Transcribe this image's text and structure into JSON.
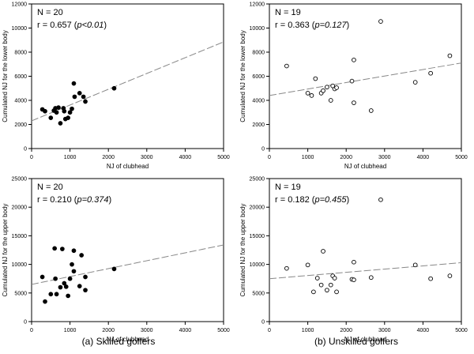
{
  "chart_data": [
    {
      "type": "scatter",
      "marker": "filled",
      "n_label": "N = 20",
      "r_text": "r = 0.657 (",
      "r_p": "p<0.01",
      "r_close": ")",
      "xlabel": "NJ of clubhead",
      "ylabel": "Cumulated NJ for the lower body",
      "xlim": [
        0,
        5000
      ],
      "ylim": [
        0,
        12000
      ],
      "xticks": [
        0,
        1000,
        2000,
        3000,
        4000,
        5000
      ],
      "yticks": [
        0,
        2000,
        4000,
        6000,
        8000,
        10000,
        12000
      ],
      "trend": {
        "x0": 0,
        "y0": 2300,
        "x1": 5000,
        "y1": 8850
      },
      "points": [
        {
          "x": 280,
          "y": 3250
        },
        {
          "x": 350,
          "y": 3100
        },
        {
          "x": 500,
          "y": 2550
        },
        {
          "x": 580,
          "y": 3150
        },
        {
          "x": 620,
          "y": 3350
        },
        {
          "x": 650,
          "y": 3000
        },
        {
          "x": 700,
          "y": 3400
        },
        {
          "x": 750,
          "y": 2100
        },
        {
          "x": 830,
          "y": 3350
        },
        {
          "x": 850,
          "y": 3100
        },
        {
          "x": 880,
          "y": 2450
        },
        {
          "x": 950,
          "y": 2550
        },
        {
          "x": 1000,
          "y": 3000
        },
        {
          "x": 1050,
          "y": 3300
        },
        {
          "x": 1100,
          "y": 5400
        },
        {
          "x": 1120,
          "y": 4300
        },
        {
          "x": 1250,
          "y": 4600
        },
        {
          "x": 1350,
          "y": 4300
        },
        {
          "x": 1400,
          "y": 3900
        },
        {
          "x": 2150,
          "y": 5000
        }
      ]
    },
    {
      "type": "scatter",
      "marker": "open",
      "n_label": "N = 19",
      "r_text": "r = 0.363 (",
      "r_p": "p=0.127",
      "r_close": ")",
      "xlabel": "NJ of clubhead",
      "ylabel": "Cumulated NJ for the lower body",
      "xlim": [
        0,
        5000
      ],
      "ylim": [
        0,
        12000
      ],
      "xticks": [
        0,
        1000,
        2000,
        3000,
        4000,
        5000
      ],
      "yticks": [
        0,
        2000,
        4000,
        6000,
        8000,
        10000,
        12000
      ],
      "trend": {
        "x0": 0,
        "y0": 4400,
        "x1": 5000,
        "y1": 7100
      },
      "points": [
        {
          "x": 450,
          "y": 6850
        },
        {
          "x": 1000,
          "y": 4600
        },
        {
          "x": 1100,
          "y": 4400
        },
        {
          "x": 1200,
          "y": 5800
        },
        {
          "x": 1350,
          "y": 4600
        },
        {
          "x": 1400,
          "y": 4800
        },
        {
          "x": 1500,
          "y": 5100
        },
        {
          "x": 1600,
          "y": 4000
        },
        {
          "x": 1650,
          "y": 5200
        },
        {
          "x": 1700,
          "y": 4950
        },
        {
          "x": 1750,
          "y": 5050
        },
        {
          "x": 2150,
          "y": 5600
        },
        {
          "x": 2200,
          "y": 7350
        },
        {
          "x": 2200,
          "y": 3800
        },
        {
          "x": 2650,
          "y": 3150
        },
        {
          "x": 2900,
          "y": 10550
        },
        {
          "x": 3800,
          "y": 5500
        },
        {
          "x": 4200,
          "y": 6250
        },
        {
          "x": 4700,
          "y": 7700
        }
      ]
    },
    {
      "type": "scatter",
      "marker": "filled",
      "n_label": "N = 20",
      "r_text": "r = 0.210 (",
      "r_p": "p=0.374",
      "r_close": ")",
      "xlabel": "NJ of clubhead",
      "ylabel": "Cumulated NJ for the upper body",
      "xlim": [
        0,
        5000
      ],
      "ylim": [
        0,
        25000
      ],
      "xticks": [
        0,
        1000,
        2000,
        3000,
        4000,
        5000
      ],
      "yticks": [
        0,
        5000,
        10000,
        15000,
        20000,
        25000
      ],
      "trend": {
        "x0": 0,
        "y0": 6500,
        "x1": 5000,
        "y1": 13400
      },
      "points": [
        {
          "x": 280,
          "y": 7800
        },
        {
          "x": 350,
          "y": 3500
        },
        {
          "x": 500,
          "y": 4800
        },
        {
          "x": 600,
          "y": 12800
        },
        {
          "x": 620,
          "y": 7500
        },
        {
          "x": 650,
          "y": 4800
        },
        {
          "x": 750,
          "y": 6000
        },
        {
          "x": 800,
          "y": 12700
        },
        {
          "x": 850,
          "y": 6700
        },
        {
          "x": 900,
          "y": 6100
        },
        {
          "x": 950,
          "y": 4500
        },
        {
          "x": 1000,
          "y": 7500
        },
        {
          "x": 1050,
          "y": 10000
        },
        {
          "x": 1100,
          "y": 8800
        },
        {
          "x": 1100,
          "y": 12400
        },
        {
          "x": 1250,
          "y": 6200
        },
        {
          "x": 1300,
          "y": 11600
        },
        {
          "x": 1400,
          "y": 5500
        },
        {
          "x": 1400,
          "y": 7800
        },
        {
          "x": 2150,
          "y": 9200
        }
      ]
    },
    {
      "type": "scatter",
      "marker": "open",
      "n_label": "N = 19",
      "r_text": "r = 0.182 (",
      "r_p": "p=0.455",
      "r_close": ")",
      "xlabel": "NJ of clubhead",
      "ylabel": "Cumulated NJ for the upper body",
      "xlim": [
        0,
        5000
      ],
      "ylim": [
        0,
        25000
      ],
      "xticks": [
        0,
        1000,
        2000,
        3000,
        4000,
        5000
      ],
      "yticks": [
        0,
        5000,
        10000,
        15000,
        20000,
        25000
      ],
      "trend": {
        "x0": 0,
        "y0": 7500,
        "x1": 5000,
        "y1": 10300
      },
      "points": [
        {
          "x": 450,
          "y": 9300
        },
        {
          "x": 1000,
          "y": 9900
        },
        {
          "x": 1150,
          "y": 5200
        },
        {
          "x": 1250,
          "y": 7600
        },
        {
          "x": 1350,
          "y": 6400
        },
        {
          "x": 1400,
          "y": 12300
        },
        {
          "x": 1500,
          "y": 5500
        },
        {
          "x": 1600,
          "y": 6400
        },
        {
          "x": 1650,
          "y": 8000
        },
        {
          "x": 1700,
          "y": 7600
        },
        {
          "x": 1750,
          "y": 5200
        },
        {
          "x": 2150,
          "y": 7400
        },
        {
          "x": 2200,
          "y": 7300
        },
        {
          "x": 2200,
          "y": 10400
        },
        {
          "x": 2650,
          "y": 7700
        },
        {
          "x": 2900,
          "y": 21300
        },
        {
          "x": 3800,
          "y": 9900
        },
        {
          "x": 4200,
          "y": 7500
        },
        {
          "x": 4700,
          "y": 8000
        }
      ]
    }
  ],
  "captions": {
    "left": "(a) Skilled golfers",
    "right": "(b) Unskilled golfers"
  }
}
